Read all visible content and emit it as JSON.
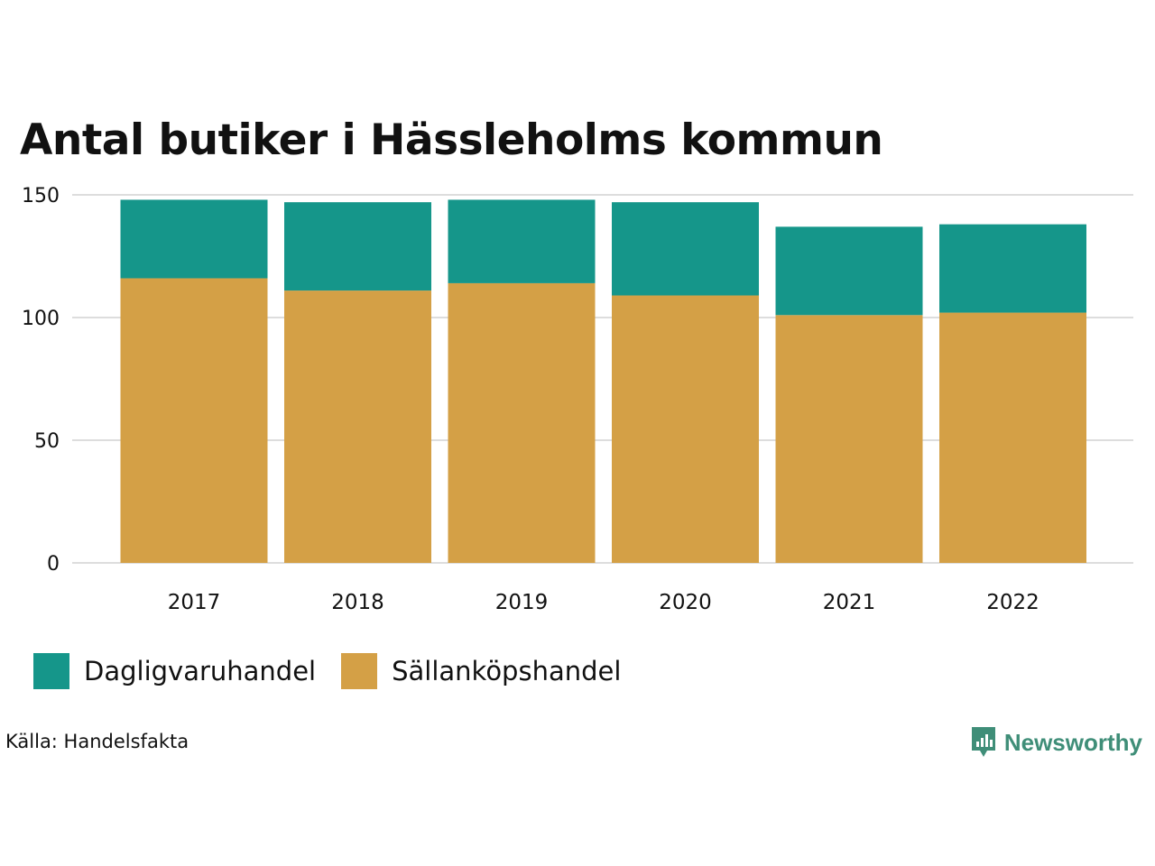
{
  "chart_data": {
    "type": "bar",
    "stacked": true,
    "title": "Antal butiker i Hässleholms kommun",
    "categories": [
      "2017",
      "2018",
      "2019",
      "2020",
      "2021",
      "2022"
    ],
    "series": [
      {
        "name": "Sällanköpshandel",
        "color": "#d4a046",
        "values": [
          116,
          111,
          114,
          109,
          101,
          102
        ]
      },
      {
        "name": "Dagligvaruhandel",
        "color": "#15968a",
        "values": [
          32,
          36,
          34,
          38,
          36,
          36
        ]
      }
    ],
    "ylim": [
      0,
      150
    ],
    "yticks": [
      0,
      50,
      100,
      150
    ],
    "xlabel": "",
    "ylabel": "",
    "grid": true,
    "legend_position": "bottom-left"
  },
  "legend": [
    {
      "label": "Dagligvaruhandel",
      "color": "#15968a"
    },
    {
      "label": "Sällanköpshandel",
      "color": "#d4a046"
    }
  ],
  "source": "Källa: Handelsfakta",
  "brand": {
    "name": "Newsworthy",
    "color": "#3f8e78",
    "icon": "newsworthy-logo-icon"
  }
}
